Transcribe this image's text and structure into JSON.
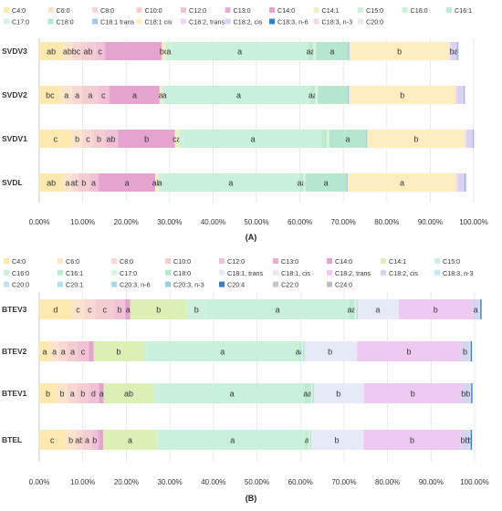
{
  "chart_data": [
    {
      "type": "bar",
      "orientation": "horizontal",
      "stacked": true,
      "panel_label": "(A)",
      "categories": [
        "SVDV3",
        "SVDV2",
        "SVDV1",
        "SVDL"
      ],
      "xlim": [
        0,
        100
      ],
      "xticks": [
        "0.00%",
        "10.00%",
        "20.00%",
        "30.00%",
        "40.00%",
        "50.00%",
        "60.00%",
        "70.00%",
        "80.00%",
        "90.00%",
        "100.00%"
      ],
      "grid": "vertical",
      "legend_placement": "top",
      "series": [
        {
          "name": "C4:0",
          "color": "#fde8b0",
          "values": [
            5.5,
            5.0,
            7.5,
            5.5
          ],
          "labels": [
            "ab",
            "bc",
            "c",
            "ab"
          ]
        },
        {
          "name": "C6:0",
          "color": "#fbe4cc",
          "values": [
            2.0,
            2.5,
            2.5,
            2.0
          ],
          "labels": [
            "ab",
            "a",
            "b",
            "a"
          ]
        },
        {
          "name": "C8:0",
          "color": "#f9d7d2",
          "values": [
            2.0,
            2.5,
            2.5,
            1.5
          ],
          "labels": [
            "bc",
            "a",
            "c",
            "ab"
          ]
        },
        {
          "name": "C10:0",
          "color": "#f4cdd2",
          "values": [
            3.5,
            3.5,
            2.5,
            2.5
          ],
          "labels": [
            "ab",
            "a",
            "b",
            "b"
          ]
        },
        {
          "name": "C12:0",
          "color": "#f1c1d5",
          "values": [
            2.0,
            2.5,
            3.0,
            2.0
          ],
          "labels": [
            "c",
            "c",
            "ab",
            "a"
          ]
        },
        {
          "name": "C13:0",
          "color": "#e9abd0",
          "values": [
            0.2,
            0.2,
            0.2,
            0.2
          ],
          "labels": [
            "",
            "",
            "",
            ""
          ]
        },
        {
          "name": "C14:0",
          "color": "#e5a4ce",
          "values": [
            13.0,
            11.5,
            13.0,
            13.0
          ],
          "labels": [
            "",
            "a",
            "b",
            "a"
          ]
        },
        {
          "name": "C14:1",
          "color": "#eef1c4",
          "values": [
            1.0,
            0.6,
            1.0,
            0.7
          ],
          "labels": [
            "bc",
            "a",
            "ca",
            "ab"
          ]
        },
        {
          "name": "C15:0",
          "color": "#cff0df",
          "values": [
            1.2,
            1.0,
            1.2,
            0.8
          ],
          "labels": [
            "a",
            "a",
            "",
            "a"
          ]
        },
        {
          "name": "C16:0",
          "color": "#c8f0da",
          "values": [
            31.5,
            33.2,
            31.6,
            31.8
          ],
          "labels": [
            "a",
            "a",
            "a",
            "a"
          ]
        },
        {
          "name": "C16:1",
          "color": "#bfead2",
          "values": [
            1.2,
            1.0,
            1.2,
            0.8
          ],
          "labels": [
            "aa",
            "aa",
            "",
            "aa"
          ]
        },
        {
          "name": "C17:0",
          "color": "#d6f3e4",
          "values": [
            0.6,
            0.6,
            0.6,
            0.5
          ],
          "labels": [
            "",
            "",
            "",
            ""
          ]
        },
        {
          "name": "C18:0",
          "color": "#b6e6cd",
          "values": [
            7.4,
            6.9,
            8.4,
            9.4
          ],
          "labels": [
            "a",
            "",
            "a",
            "a"
          ]
        },
        {
          "name": "C18:1 trans",
          "color": "#a6c9ea",
          "values": [
            0.3,
            0.3,
            0.3,
            0.3
          ],
          "labels": [
            "",
            "",
            "",
            ""
          ]
        },
        {
          "name": "C18:1 cis",
          "color": "#fdedc0",
          "values": [
            23.0,
            24.5,
            22.5,
            25.0
          ],
          "labels": [
            "b",
            "b",
            "b",
            "a"
          ]
        },
        {
          "name": "C18:2, trans",
          "color": "#ecd8f2",
          "values": [
            0.4,
            0.4,
            0.4,
            0.5
          ],
          "labels": [
            "",
            "",
            "",
            ""
          ]
        },
        {
          "name": "C18:2, cis",
          "color": "#d7d3f1",
          "values": [
            1.4,
            1.5,
            1.4,
            1.5
          ],
          "labels": [
            "ba",
            "",
            "",
            ""
          ]
        },
        {
          "name": "C18:3, n-6",
          "color": "#2f7fc9",
          "values": [
            0.1,
            0.1,
            0.1,
            0.1
          ],
          "labels": [
            "",
            "",
            "",
            ""
          ]
        },
        {
          "name": "C18:3, n-3",
          "color": "#f2d9ea",
          "values": [
            0.1,
            0.1,
            0.1,
            0.1
          ],
          "labels": [
            "",
            "",
            "",
            ""
          ]
        },
        {
          "name": "C20:0",
          "color": "#eaeaea",
          "values": [
            0.3,
            0.3,
            0.3,
            0.3
          ],
          "labels": [
            "",
            "",
            "",
            ""
          ]
        }
      ]
    },
    {
      "type": "bar",
      "orientation": "horizontal",
      "stacked": true,
      "panel_label": "(B)",
      "categories": [
        "BTEV3",
        "BTEV2",
        "BTEV1",
        "BTEL"
      ],
      "xlim": [
        0,
        100
      ],
      "xticks": [
        "0.00%",
        "10.00%",
        "20.00%",
        "30.00%",
        "40.00%",
        "50.00%",
        "60.00%",
        "70.00%",
        "80.00%",
        "90.00%",
        "100.00%"
      ],
      "grid": "vertical",
      "legend_placement": "top",
      "series": [
        {
          "name": "C4:0",
          "color": "#fde8b0",
          "values": [
            7.5,
            2.5,
            4.0,
            6.0
          ],
          "labels": [
            "d",
            "a",
            "b",
            "c"
          ]
        },
        {
          "name": "C6:0",
          "color": "#fbe4cc",
          "values": [
            2.8,
            2.0,
            2.5,
            2.5
          ],
          "labels": [
            "c",
            "a",
            "b",
            "b"
          ]
        },
        {
          "name": "C8:0",
          "color": "#f9d7d2",
          "values": [
            2.6,
            2.0,
            2.2,
            1.5
          ],
          "labels": [
            "c",
            "a",
            "a",
            "ab"
          ]
        },
        {
          "name": "C10:0",
          "color": "#f4cdd2",
          "values": [
            4.3,
            2.3,
            2.6,
            2.0
          ],
          "labels": [
            "c",
            "a",
            "b",
            "a"
          ]
        },
        {
          "name": "C12:0",
          "color": "#f1c1d5",
          "values": [
            2.5,
            2.5,
            2.3,
            1.5
          ],
          "labels": [
            "b",
            "c",
            "d",
            "b"
          ]
        },
        {
          "name": "C13:0",
          "color": "#e9abd0",
          "values": [
            0.2,
            0.2,
            0.2,
            0.2
          ],
          "labels": [
            "",
            "",
            "",
            ""
          ]
        },
        {
          "name": "C14:0",
          "color": "#e5a4ce",
          "values": [
            1.0,
            1.0,
            1.0,
            1.0
          ],
          "labels": [
            "a",
            "",
            "a",
            ""
          ]
        },
        {
          "name": "C14:1",
          "color": "#dcefb5",
          "values": [
            13.0,
            11.5,
            11.5,
            12.3
          ],
          "labels": [
            "b",
            "b",
            "ab",
            "a"
          ]
        },
        {
          "name": "C15:0",
          "color": "#cff0df",
          "values": [
            4.4,
            0.6,
            1.2,
            0.6
          ],
          "labels": [
            "b",
            "",
            "",
            ""
          ]
        },
        {
          "name": "C16:0",
          "color": "#c8f0da",
          "values": [
            32.9,
            35.0,
            33.5,
            33.6
          ],
          "labels": [
            "a",
            "a",
            "a",
            "a"
          ]
        },
        {
          "name": "C16:1",
          "color": "#bfead2",
          "values": [
            1.2,
            0.6,
            1.4,
            0.6
          ],
          "labels": [
            "aa",
            "aa",
            "aa",
            "a"
          ]
        },
        {
          "name": "C17:0",
          "color": "#d6f3e4",
          "values": [
            0.5,
            0.4,
            0.4,
            0.4
          ],
          "labels": [
            "",
            "",
            "",
            ""
          ]
        },
        {
          "name": "C18:0",
          "color": "#b6e6cd",
          "values": [
            0.3,
            0.3,
            0.3,
            0.3
          ],
          "labels": [
            "",
            "",
            "",
            ""
          ]
        },
        {
          "name": "C18:1, trans",
          "color": "#e6eaf7",
          "values": [
            9.1,
            11.8,
            11.2,
            11.7
          ],
          "labels": [
            "a",
            "b",
            "b",
            "b"
          ]
        },
        {
          "name": "C18:1, cis",
          "color": "#f2e4f5",
          "values": [
            0.3,
            0.3,
            0.3,
            0.3
          ],
          "labels": [
            "",
            "",
            "",
            ""
          ]
        },
        {
          "name": "C18:2, trans",
          "color": "#eecaf2",
          "values": [
            16.9,
            23.8,
            22.4,
            22.3
          ],
          "labels": [
            "b",
            "b",
            "b",
            "b"
          ]
        },
        {
          "name": "C18:2, cis",
          "color": "#d7d3f1",
          "values": [
            1.5,
            2.0,
            1.9,
            2.0
          ],
          "labels": [
            "a",
            "b",
            "bb",
            "bb"
          ]
        },
        {
          "name": "C18:3, n-3",
          "color": "#c5e9f1",
          "values": [
            0.3,
            0.3,
            0.3,
            0.3
          ],
          "labels": [
            "",
            "",
            "",
            "b"
          ]
        },
        {
          "name": "C20:0",
          "color": "#c0e2ec",
          "values": [
            0.0,
            0.0,
            0.0,
            0.0
          ],
          "labels": [
            "",
            "",
            "",
            ""
          ]
        },
        {
          "name": "C20:1",
          "color": "#b3e1ea",
          "values": [
            0.0,
            0.0,
            0.0,
            0.0
          ],
          "labels": [
            "",
            "",
            "",
            ""
          ]
        },
        {
          "name": "C20:3, n-6",
          "color": "#a7d8e6",
          "values": [
            0.0,
            0.0,
            0.0,
            0.0
          ],
          "labels": [
            "",
            "",
            "",
            ""
          ]
        },
        {
          "name": "C20:3, n-3",
          "color": "#9acfe0",
          "values": [
            0.0,
            0.0,
            0.0,
            0.0
          ],
          "labels": [
            "",
            "",
            "",
            ""
          ]
        },
        {
          "name": "C20:4",
          "color": "#3d7ec0",
          "values": [
            0.3,
            0.3,
            0.3,
            0.3
          ],
          "labels": [
            "",
            "",
            "",
            ""
          ]
        },
        {
          "name": "C22:0",
          "color": "#c9c9c9",
          "values": [
            0.0,
            0.0,
            0.0,
            0.0
          ],
          "labels": [
            "",
            "",
            "",
            ""
          ]
        },
        {
          "name": "C24:0",
          "color": "#bdbdbd",
          "values": [
            0.0,
            0.0,
            0.0,
            0.0
          ],
          "labels": [
            "",
            "",
            "",
            ""
          ]
        }
      ]
    }
  ]
}
